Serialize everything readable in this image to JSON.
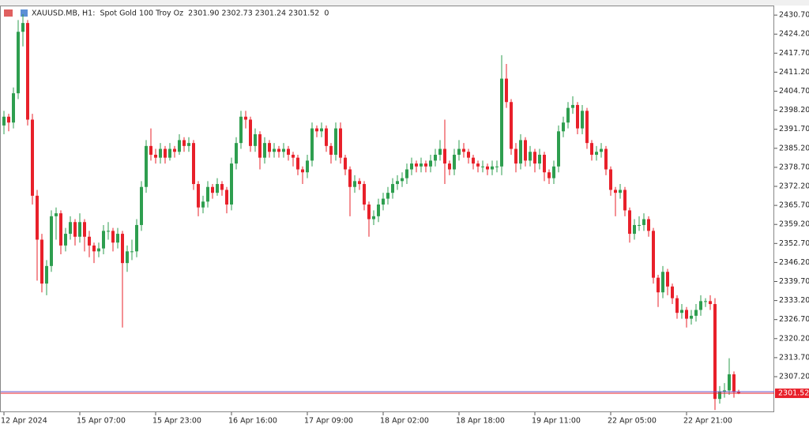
{
  "chart_data": {
    "type": "candlestick",
    "title": "XAUUSD.MB, H1:  Spot Gold 100 Troy Oz  2301.90 2302.73 2301.24 2301.52  0",
    "up_color": "#2e9e4f",
    "down_color": "#e8202a",
    "ylim": [
      2295.6,
      2433.7
    ],
    "yticks": [
      {
        "value": 2430.7,
        "label": "2430.70"
      },
      {
        "value": 2424.2,
        "label": "2424.20"
      },
      {
        "value": 2417.7,
        "label": "2417.70"
      },
      {
        "value": 2411.2,
        "label": "2411.20"
      },
      {
        "value": 2404.7,
        "label": "2404.70"
      },
      {
        "value": 2398.2,
        "label": "2398.20"
      },
      {
        "value": 2391.7,
        "label": "2391.70"
      },
      {
        "value": 2385.2,
        "label": "2385.20"
      },
      {
        "value": 2378.7,
        "label": "2378.70"
      },
      {
        "value": 2372.2,
        "label": "2372.20"
      },
      {
        "value": 2365.7,
        "label": "2365.70"
      },
      {
        "value": 2359.2,
        "label": "2359.20"
      },
      {
        "value": 2352.7,
        "label": "2352.70"
      },
      {
        "value": 2346.2,
        "label": "2346.20"
      },
      {
        "value": 2339.7,
        "label": "2339.70"
      },
      {
        "value": 2333.2,
        "label": "2333.20"
      },
      {
        "value": 2326.7,
        "label": "2326.70"
      },
      {
        "value": 2320.2,
        "label": "2320.20"
      },
      {
        "value": 2313.7,
        "label": "2313.70"
      },
      {
        "value": 2307.2,
        "label": "2307.20"
      }
    ],
    "categories": [
      "12 Apr 2024",
      null,
      null,
      null,
      null,
      null,
      null,
      null,
      null,
      null,
      null,
      null,
      null,
      null,
      null,
      null,
      "15 Apr 07:00",
      null,
      null,
      null,
      null,
      null,
      null,
      null,
      null,
      null,
      null,
      null,
      null,
      null,
      null,
      null,
      "15 Apr 23:00",
      null,
      null,
      null,
      null,
      null,
      null,
      null,
      null,
      null,
      null,
      null,
      null,
      null,
      null,
      null,
      "16 Apr 16:00",
      null,
      null,
      null,
      null,
      null,
      null,
      null,
      null,
      null,
      null,
      null,
      null,
      null,
      null,
      null,
      "17 Apr 09:00",
      null,
      null,
      null,
      null,
      null,
      null,
      null,
      null,
      null,
      null,
      null,
      null,
      null,
      null,
      null,
      "18 Apr 02:00",
      null,
      null,
      null,
      null,
      null,
      null,
      null,
      null,
      null,
      null,
      null,
      null,
      null,
      null,
      null,
      "18 Apr 18:00",
      null,
      null,
      null,
      null,
      null,
      null,
      null,
      null,
      null,
      null,
      null,
      null,
      null,
      null,
      null,
      "19 Apr 11:00",
      null,
      null,
      null,
      null,
      null,
      null,
      null,
      null,
      null,
      null,
      null,
      null,
      null,
      null,
      null,
      "22 Apr 05:00",
      null,
      null,
      null,
      null,
      null,
      null,
      null,
      null,
      null,
      null,
      null,
      null,
      null,
      null,
      null,
      "22 Apr 21:00",
      null,
      null,
      null,
      null,
      null,
      null,
      null,
      null,
      null,
      null,
      null
    ],
    "ohlc": [
      [
        2393,
        2398,
        2390,
        2396
      ],
      [
        2396,
        2397,
        2391,
        2394
      ],
      [
        2394,
        2406,
        2392,
        2404
      ],
      [
        2404,
        2429,
        2402,
        2425
      ],
      [
        2425,
        2431,
        2420,
        2428
      ],
      [
        2428,
        2429,
        2393,
        2395
      ],
      [
        2395,
        2397,
        2366,
        2369
      ],
      [
        2369,
        2371,
        2340,
        2354
      ],
      [
        2354,
        2356,
        2336,
        2339
      ],
      [
        2339,
        2347,
        2335,
        2345
      ],
      [
        2345,
        2364,
        2343,
        2362
      ],
      [
        2362,
        2365,
        2354,
        2363
      ],
      [
        2363,
        2364,
        2349,
        2352
      ],
      [
        2352,
        2358,
        2350,
        2356
      ],
      [
        2356,
        2362,
        2354,
        2360
      ],
      [
        2360,
        2361,
        2352,
        2355
      ],
      [
        2355,
        2363,
        2353,
        2360
      ],
      [
        2360,
        2361,
        2350,
        2355
      ],
      [
        2355,
        2357,
        2348,
        2352
      ],
      [
        2352,
        2353,
        2346,
        2350
      ],
      [
        2350,
        2353,
        2348,
        2351
      ],
      [
        2351,
        2359,
        2349,
        2357
      ],
      [
        2357,
        2360,
        2354,
        2357
      ],
      [
        2357,
        2358,
        2350,
        2353
      ],
      [
        2353,
        2358,
        2351,
        2356
      ],
      [
        2356,
        2357,
        2324,
        2346
      ],
      [
        2346,
        2352,
        2343,
        2350
      ],
      [
        2350,
        2354,
        2347,
        2350
      ],
      [
        2350,
        2361,
        2348,
        2359
      ],
      [
        2359,
        2374,
        2357,
        2372
      ],
      [
        2372,
        2388,
        2370,
        2386
      ],
      [
        2386,
        2392,
        2381,
        2383
      ],
      [
        2383,
        2385,
        2380,
        2382
      ],
      [
        2382,
        2387,
        2380,
        2385
      ],
      [
        2385,
        2386,
        2380,
        2382
      ],
      [
        2382,
        2387,
        2381,
        2385
      ],
      [
        2385,
        2386,
        2382,
        2384
      ],
      [
        2384,
        2390,
        2383,
        2388
      ],
      [
        2388,
        2389,
        2384,
        2386
      ],
      [
        2386,
        2389,
        2384,
        2387
      ],
      [
        2387,
        2388,
        2371,
        2373
      ],
      [
        2373,
        2374,
        2362,
        2365
      ],
      [
        2365,
        2369,
        2363,
        2367
      ],
      [
        2367,
        2374,
        2365,
        2372
      ],
      [
        2372,
        2373,
        2368,
        2370
      ],
      [
        2370,
        2375,
        2369,
        2373
      ],
      [
        2373,
        2374,
        2369,
        2371
      ],
      [
        2371,
        2372,
        2363,
        2366
      ],
      [
        2366,
        2382,
        2364,
        2380
      ],
      [
        2380,
        2389,
        2378,
        2387
      ],
      [
        2387,
        2398,
        2385,
        2396
      ],
      [
        2396,
        2398,
        2392,
        2395
      ],
      [
        2395,
        2396,
        2384,
        2386
      ],
      [
        2386,
        2392,
        2384,
        2390
      ],
      [
        2390,
        2391,
        2378,
        2382
      ],
      [
        2382,
        2389,
        2380,
        2387
      ],
      [
        2387,
        2388,
        2382,
        2384
      ],
      [
        2384,
        2387,
        2382,
        2385
      ],
      [
        2385,
        2386,
        2382,
        2384
      ],
      [
        2384,
        2387,
        2382,
        2385
      ],
      [
        2385,
        2386,
        2381,
        2383
      ],
      [
        2383,
        2384,
        2379,
        2382
      ],
      [
        2382,
        2383,
        2376,
        2378
      ],
      [
        2378,
        2379,
        2373,
        2377
      ],
      [
        2377,
        2383,
        2375,
        2381
      ],
      [
        2381,
        2394,
        2379,
        2392
      ],
      [
        2392,
        2393,
        2389,
        2391
      ],
      [
        2391,
        2394,
        2389,
        2392
      ],
      [
        2392,
        2393,
        2384,
        2386
      ],
      [
        2386,
        2387,
        2380,
        2383
      ],
      [
        2383,
        2394,
        2381,
        2392
      ],
      [
        2392,
        2394,
        2380,
        2382
      ],
      [
        2382,
        2383,
        2376,
        2378
      ],
      [
        2378,
        2379,
        2362,
        2372
      ],
      [
        2372,
        2376,
        2370,
        2374
      ],
      [
        2374,
        2375,
        2371,
        2373
      ],
      [
        2373,
        2374,
        2364,
        2366
      ],
      [
        2366,
        2367,
        2355,
        2361
      ],
      [
        2361,
        2364,
        2359,
        2362
      ],
      [
        2362,
        2368,
        2360,
        2366
      ],
      [
        2366,
        2370,
        2364,
        2368
      ],
      [
        2368,
        2372,
        2366,
        2370
      ],
      [
        2370,
        2375,
        2368,
        2373
      ],
      [
        2373,
        2376,
        2371,
        2374
      ],
      [
        2374,
        2377,
        2372,
        2375
      ],
      [
        2375,
        2380,
        2373,
        2378
      ],
      [
        2378,
        2382,
        2376,
        2380
      ],
      [
        2380,
        2381,
        2377,
        2379
      ],
      [
        2379,
        2382,
        2377,
        2380
      ],
      [
        2380,
        2381,
        2377,
        2379
      ],
      [
        2379,
        2383,
        2377,
        2381
      ],
      [
        2381,
        2385,
        2379,
        2383
      ],
      [
        2383,
        2388,
        2381,
        2385
      ],
      [
        2385,
        2395,
        2373,
        2380
      ],
      [
        2380,
        2381,
        2376,
        2378
      ],
      [
        2378,
        2385,
        2376,
        2383
      ],
      [
        2383,
        2388,
        2381,
        2385
      ],
      [
        2385,
        2387,
        2382,
        2384
      ],
      [
        2384,
        2385,
        2380,
        2382
      ],
      [
        2382,
        2383,
        2378,
        2380
      ],
      [
        2380,
        2381,
        2377,
        2379
      ],
      [
        2379,
        2381,
        2377,
        2379
      ],
      [
        2379,
        2380,
        2376,
        2378
      ],
      [
        2378,
        2381,
        2376,
        2379
      ],
      [
        2379,
        2381,
        2377,
        2379
      ],
      [
        2379,
        2417,
        2376,
        2409
      ],
      [
        2409,
        2414,
        2399,
        2401
      ],
      [
        2401,
        2402,
        2383,
        2385
      ],
      [
        2385,
        2387,
        2377,
        2380
      ],
      [
        2380,
        2390,
        2378,
        2388
      ],
      [
        2388,
        2389,
        2379,
        2381
      ],
      [
        2381,
        2386,
        2379,
        2384
      ],
      [
        2384,
        2385,
        2377,
        2380
      ],
      [
        2380,
        2385,
        2378,
        2383
      ],
      [
        2383,
        2384,
        2374,
        2377
      ],
      [
        2377,
        2378,
        2373,
        2375
      ],
      [
        2375,
        2381,
        2373,
        2379
      ],
      [
        2379,
        2393,
        2377,
        2391
      ],
      [
        2391,
        2396,
        2389,
        2394
      ],
      [
        2394,
        2401,
        2392,
        2399
      ],
      [
        2399,
        2403,
        2397,
        2400
      ],
      [
        2400,
        2401,
        2390,
        2392
      ],
      [
        2392,
        2400,
        2390,
        2398
      ],
      [
        2398,
        2399,
        2385,
        2387
      ],
      [
        2387,
        2388,
        2381,
        2383
      ],
      [
        2383,
        2386,
        2381,
        2384
      ],
      [
        2384,
        2387,
        2382,
        2385
      ],
      [
        2385,
        2386,
        2376,
        2378
      ],
      [
        2378,
        2379,
        2369,
        2371
      ],
      [
        2371,
        2372,
        2362,
        2370
      ],
      [
        2370,
        2373,
        2368,
        2371
      ],
      [
        2371,
        2372,
        2362,
        2364
      ],
      [
        2364,
        2365,
        2353,
        2356
      ],
      [
        2356,
        2361,
        2354,
        2359
      ],
      [
        2359,
        2362,
        2357,
        2359
      ],
      [
        2359,
        2363,
        2357,
        2361
      ],
      [
        2361,
        2362,
        2355,
        2357
      ],
      [
        2357,
        2358,
        2339,
        2341
      ],
      [
        2341,
        2342,
        2331,
        2336
      ],
      [
        2336,
        2345,
        2334,
        2343
      ],
      [
        2343,
        2344,
        2335,
        2338
      ],
      [
        2338,
        2339,
        2332,
        2334
      ],
      [
        2334,
        2335,
        2327,
        2329
      ],
      [
        2329,
        2332,
        2327,
        2330
      ],
      [
        2330,
        2331,
        2324,
        2327
      ],
      [
        2327,
        2330,
        2325,
        2328
      ],
      [
        2328,
        2332,
        2326,
        2330
      ],
      [
        2330,
        2335,
        2328,
        2333
      ],
      [
        2333,
        2334,
        2331,
        2333
      ],
      [
        2333,
        2335,
        2330,
        2332
      ],
      [
        2332,
        2334,
        2295.8,
        2299.6
      ],
      [
        2299.6,
        2304,
        2298,
        2302
      ],
      [
        2302,
        2305,
        2300,
        2302.5
      ],
      [
        2302.5,
        2313.5,
        2301,
        2308
      ],
      [
        2308,
        2309,
        2300,
        2301.9
      ],
      [
        2301.9,
        2302.73,
        2301.24,
        2301.52
      ]
    ]
  }
}
